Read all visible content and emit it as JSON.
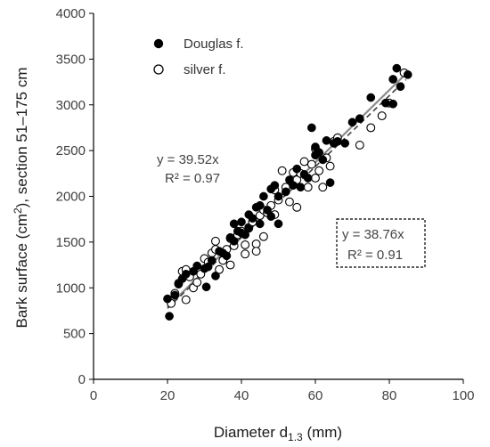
{
  "chart_data": {
    "type": "scatter",
    "xlabel": "Diameter d",
    "xlabel_sub": "1.3",
    "xlabel_unit": " (mm)",
    "ylabel": "Bark surface (cm",
    "ylabel_sup": "2",
    "ylabel_rest": "),  section 51–175 cm",
    "xlim": [
      0,
      100
    ],
    "ylim": [
      0,
      4000
    ],
    "xticks": [
      "0",
      "20",
      "40",
      "60",
      "80",
      "100"
    ],
    "yticks": [
      "0",
      "500",
      "1000",
      "1500",
      "2000",
      "2500",
      "3000",
      "3500",
      "4000"
    ],
    "grid": false,
    "legend": {
      "position": "top-left",
      "entries": [
        "Douglas f.",
        "silver f."
      ]
    },
    "series": [
      {
        "name": "Douglas f.",
        "marker": "filled-circle",
        "color": "#000000",
        "trendline": {
          "slope": 39.52,
          "style": "solid",
          "color": "#8c8c8c",
          "equation": "y = 39.52x",
          "r2": "R² = 0.97"
        },
        "points": [
          [
            20,
            880
          ],
          [
            20.5,
            690
          ],
          [
            22,
            920
          ],
          [
            23,
            1040
          ],
          [
            24,
            1100
          ],
          [
            25,
            1150
          ],
          [
            27,
            1180
          ],
          [
            28,
            1240
          ],
          [
            30,
            1210
          ],
          [
            30.5,
            1010
          ],
          [
            31,
            1230
          ],
          [
            32,
            1300
          ],
          [
            33,
            1130
          ],
          [
            34,
            1400
          ],
          [
            35,
            1380
          ],
          [
            36,
            1350
          ],
          [
            37,
            1550
          ],
          [
            38,
            1510
          ],
          [
            38,
            1700
          ],
          [
            39,
            1620
          ],
          [
            40,
            1600
          ],
          [
            40,
            1720
          ],
          [
            41,
            1580
          ],
          [
            42,
            1800
          ],
          [
            42,
            1650
          ],
          [
            43,
            1760
          ],
          [
            44,
            1880
          ],
          [
            45,
            1700
          ],
          [
            45,
            1900
          ],
          [
            46,
            2000
          ],
          [
            47,
            1850
          ],
          [
            48,
            2080
          ],
          [
            48,
            1780
          ],
          [
            49,
            2120
          ],
          [
            50,
            1700
          ],
          [
            50,
            2000
          ],
          [
            52,
            2050
          ],
          [
            53,
            2180
          ],
          [
            54,
            2120
          ],
          [
            55,
            2300
          ],
          [
            56,
            2100
          ],
          [
            57,
            2240
          ],
          [
            58,
            2200
          ],
          [
            59,
            2750
          ],
          [
            60,
            2540
          ],
          [
            60,
            2450
          ],
          [
            61,
            2480
          ],
          [
            62,
            2400
          ],
          [
            63,
            2610
          ],
          [
            64,
            2150
          ],
          [
            65,
            2580
          ],
          [
            66,
            2600
          ],
          [
            68,
            2580
          ],
          [
            70,
            2810
          ],
          [
            72,
            2850
          ],
          [
            75,
            3080
          ],
          [
            79,
            3020
          ],
          [
            81,
            3010
          ],
          [
            81,
            3280
          ],
          [
            82,
            3400
          ],
          [
            83,
            3200
          ],
          [
            85,
            3330
          ]
        ]
      },
      {
        "name": "silver f.",
        "marker": "open-circle",
        "color": "#000000",
        "trendline": {
          "slope": 38.76,
          "style": "dashed",
          "color": "#404040",
          "equation": "y = 38.76x",
          "r2": "R² = 0.91"
        },
        "points": [
          [
            21,
            830
          ],
          [
            22,
            940
          ],
          [
            23,
            1050
          ],
          [
            24,
            1180
          ],
          [
            25,
            1200
          ],
          [
            25,
            870
          ],
          [
            26,
            1120
          ],
          [
            27,
            1000
          ],
          [
            28,
            1060
          ],
          [
            29,
            1150
          ],
          [
            30,
            1320
          ],
          [
            31,
            1280
          ],
          [
            32,
            1380
          ],
          [
            33,
            1420
          ],
          [
            33,
            1510
          ],
          [
            34,
            1200
          ],
          [
            35,
            1300
          ],
          [
            36,
            1420
          ],
          [
            37,
            1250
          ],
          [
            37,
            1540
          ],
          [
            38,
            1460
          ],
          [
            39,
            1580
          ],
          [
            40,
            1620
          ],
          [
            41,
            1470
          ],
          [
            41,
            1370
          ],
          [
            42,
            1660
          ],
          [
            43,
            1720
          ],
          [
            44,
            1480
          ],
          [
            44,
            1400
          ],
          [
            45,
            1790
          ],
          [
            46,
            1850
          ],
          [
            46,
            1560
          ],
          [
            47,
            1820
          ],
          [
            48,
            1900
          ],
          [
            49,
            2070
          ],
          [
            49,
            1800
          ],
          [
            50,
            1960
          ],
          [
            51,
            2280
          ],
          [
            52,
            2100
          ],
          [
            53,
            1940
          ],
          [
            54,
            2260
          ],
          [
            55,
            1880
          ],
          [
            55,
            2180
          ],
          [
            56,
            2250
          ],
          [
            57,
            2380
          ],
          [
            58,
            2100
          ],
          [
            59,
            2350
          ],
          [
            60,
            2520
          ],
          [
            60,
            2200
          ],
          [
            61,
            2280
          ],
          [
            62,
            2100
          ],
          [
            63,
            2420
          ],
          [
            64,
            2330
          ],
          [
            65,
            2600
          ],
          [
            66,
            2640
          ],
          [
            72,
            2560
          ],
          [
            75,
            2750
          ],
          [
            78,
            2880
          ],
          [
            80,
            3020
          ],
          [
            84,
            3350
          ]
        ]
      }
    ]
  }
}
